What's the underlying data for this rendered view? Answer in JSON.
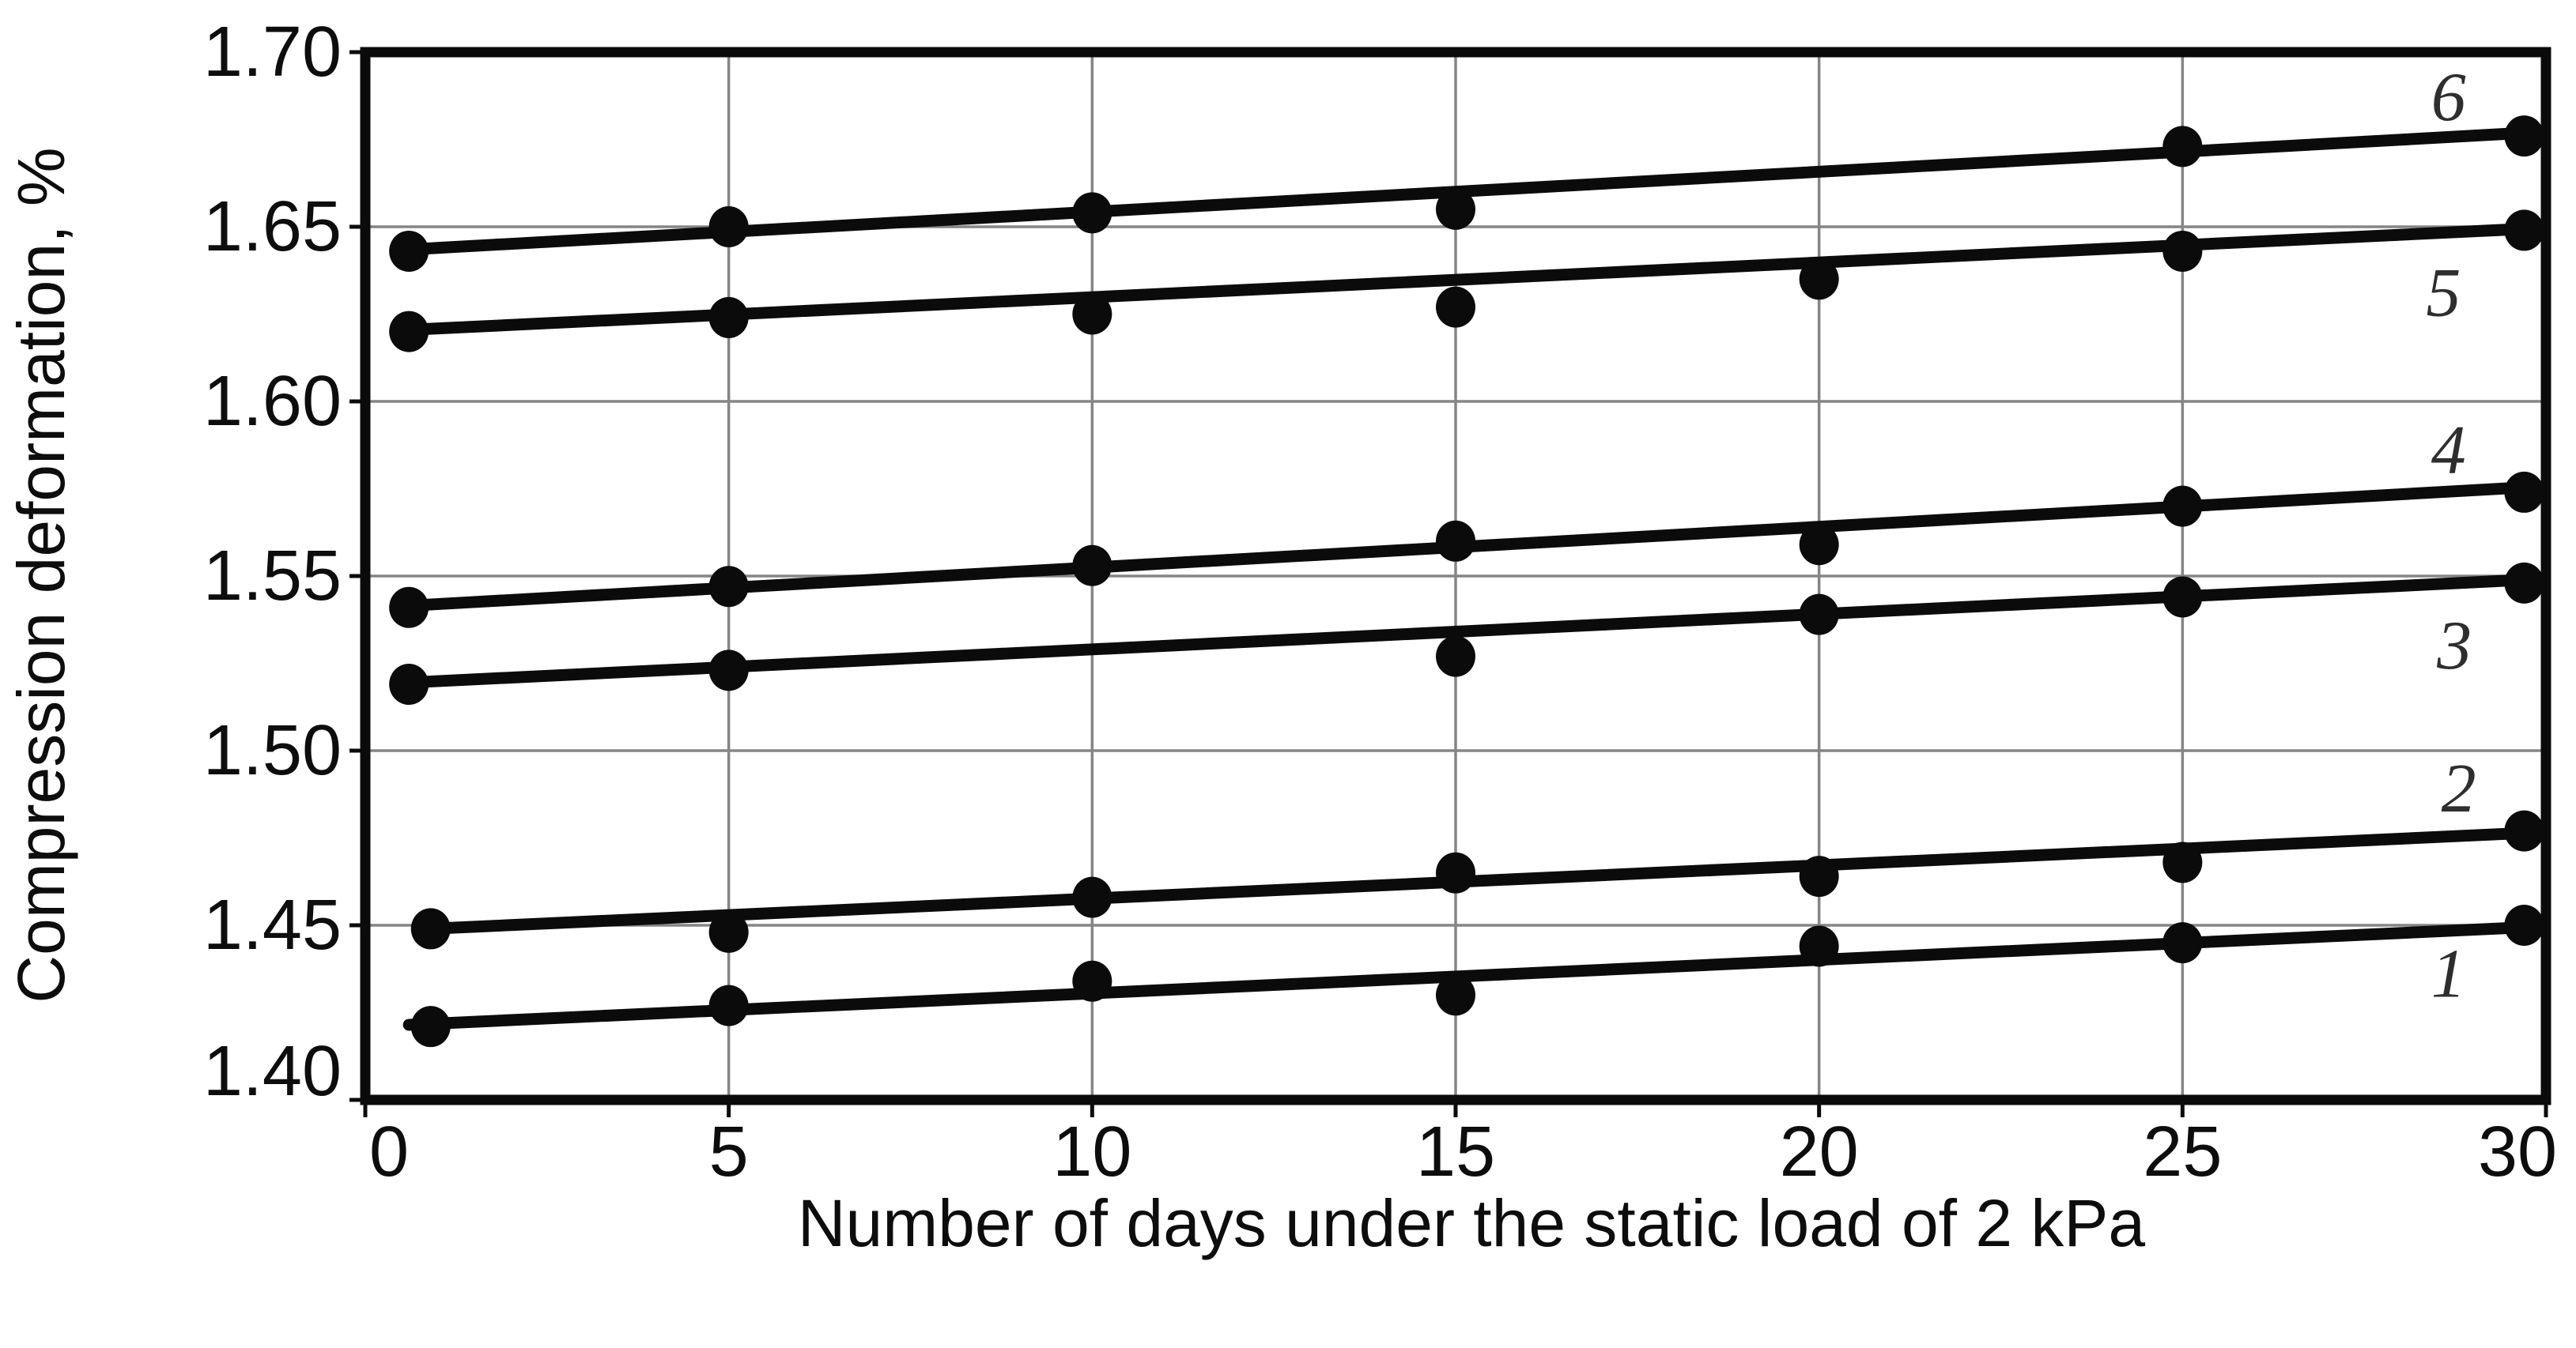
{
  "page": {
    "background": "#ffffff",
    "ink_color": "#0b0b0b",
    "grid_color": "#858585",
    "series_label_color": "#2e2e2e"
  },
  "figure": {
    "y_axis_title": "Compression deformation, %",
    "x_axis_title": "Number of days under the static load of 2 kPa"
  },
  "chart_data": {
    "type": "line",
    "title": "",
    "xlabel": "Number of days under the static load of 2 kPa",
    "ylabel": "Compression deformation, %",
    "xlim": [
      0,
      30
    ],
    "ylim": [
      1.4,
      1.7
    ],
    "grid": true,
    "legend_position": "inline italic numerals at right edge of each line",
    "days_nominal": [
      0,
      5,
      10,
      15,
      20,
      25,
      30
    ],
    "x_ticks": [
      {
        "value": 0,
        "label": "0"
      },
      {
        "value": 5,
        "label": "5"
      },
      {
        "value": 10,
        "label": "10"
      },
      {
        "value": 15,
        "label": "15"
      },
      {
        "value": 20,
        "label": "20"
      },
      {
        "value": 25,
        "label": "25"
      },
      {
        "value": 30,
        "label": "30"
      }
    ],
    "y_ticks": [
      {
        "value": 1.4,
        "label": "1.40"
      },
      {
        "value": 1.45,
        "label": "1.45"
      },
      {
        "value": 1.5,
        "label": "1.50"
      },
      {
        "value": 1.55,
        "label": "1.55"
      },
      {
        "value": 1.6,
        "label": "1.60"
      },
      {
        "value": 1.65,
        "label": "1.65"
      },
      {
        "value": 1.7,
        "label": "1.70"
      }
    ],
    "series": [
      {
        "name": "1",
        "label": "1",
        "label_at": {
          "x": 28.66,
          "y": 1.436
        },
        "trend": {
          "x1": 0.6,
          "y1": 1.4215,
          "x2": 29.8,
          "y2": 1.4495
        },
        "points": [
          [
            0.9,
            1.421
          ],
          [
            5,
            1.427
          ],
          [
            10,
            1.434
          ],
          [
            15,
            1.43
          ],
          [
            20,
            1.444
          ],
          [
            25,
            1.445
          ],
          [
            29.7,
            1.45
          ]
        ]
      },
      {
        "name": "2",
        "label": "2",
        "label_at": {
          "x": 28.8,
          "y": 1.489
        },
        "trend": {
          "x1": 0.9,
          "y1": 1.449,
          "x2": 29.8,
          "y2": 1.4765
        },
        "points": [
          [
            0.9,
            1.449
          ],
          [
            5,
            1.448
          ],
          [
            10,
            1.458
          ],
          [
            15,
            1.465
          ],
          [
            20,
            1.464
          ],
          [
            25,
            1.468
          ],
          [
            29.7,
            1.477
          ]
        ]
      },
      {
        "name": "3",
        "label": "3",
        "label_at": {
          "x": 28.74,
          "y": 1.53
        },
        "trend": {
          "x1": 0.6,
          "y1": 1.5195,
          "x2": 29.8,
          "y2": 1.549
        },
        "points": [
          [
            0.6,
            1.519
          ],
          [
            5,
            1.523
          ],
          [
            15,
            1.527
          ],
          [
            20,
            1.539
          ],
          [
            25,
            1.544
          ],
          [
            29.7,
            1.548
          ]
        ]
      },
      {
        "name": "4",
        "label": "4",
        "label_at": {
          "x": 28.66,
          "y": 1.586
        },
        "trend": {
          "x1": 0.6,
          "y1": 1.5415,
          "x2": 29.8,
          "y2": 1.5755
        },
        "points": [
          [
            0.6,
            1.541
          ],
          [
            5,
            1.547
          ],
          [
            10,
            1.553
          ],
          [
            15,
            1.56
          ],
          [
            20,
            1.559
          ],
          [
            25,
            1.57
          ],
          [
            29.7,
            1.574
          ]
        ]
      },
      {
        "name": "5",
        "label": "5",
        "label_at": {
          "x": 28.59,
          "y": 1.631
        },
        "trend": {
          "x1": 0.6,
          "y1": 1.6205,
          "x2": 29.8,
          "y2": 1.6495
        },
        "points": [
          [
            0.6,
            1.62
          ],
          [
            5,
            1.624
          ],
          [
            10,
            1.625
          ],
          [
            15,
            1.627
          ],
          [
            20,
            1.635
          ],
          [
            25,
            1.643
          ],
          [
            29.7,
            1.649
          ]
        ]
      },
      {
        "name": "6",
        "label": "6",
        "label_at": {
          "x": 28.66,
          "y": 1.687
        },
        "trend": {
          "x1": 0.6,
          "y1": 1.6435,
          "x2": 29.8,
          "y2": 1.677
        },
        "points": [
          [
            0.6,
            1.643
          ],
          [
            5,
            1.65
          ],
          [
            10,
            1.654
          ],
          [
            15,
            1.655
          ],
          [
            25,
            1.673
          ],
          [
            29.7,
            1.676
          ]
        ]
      }
    ]
  }
}
